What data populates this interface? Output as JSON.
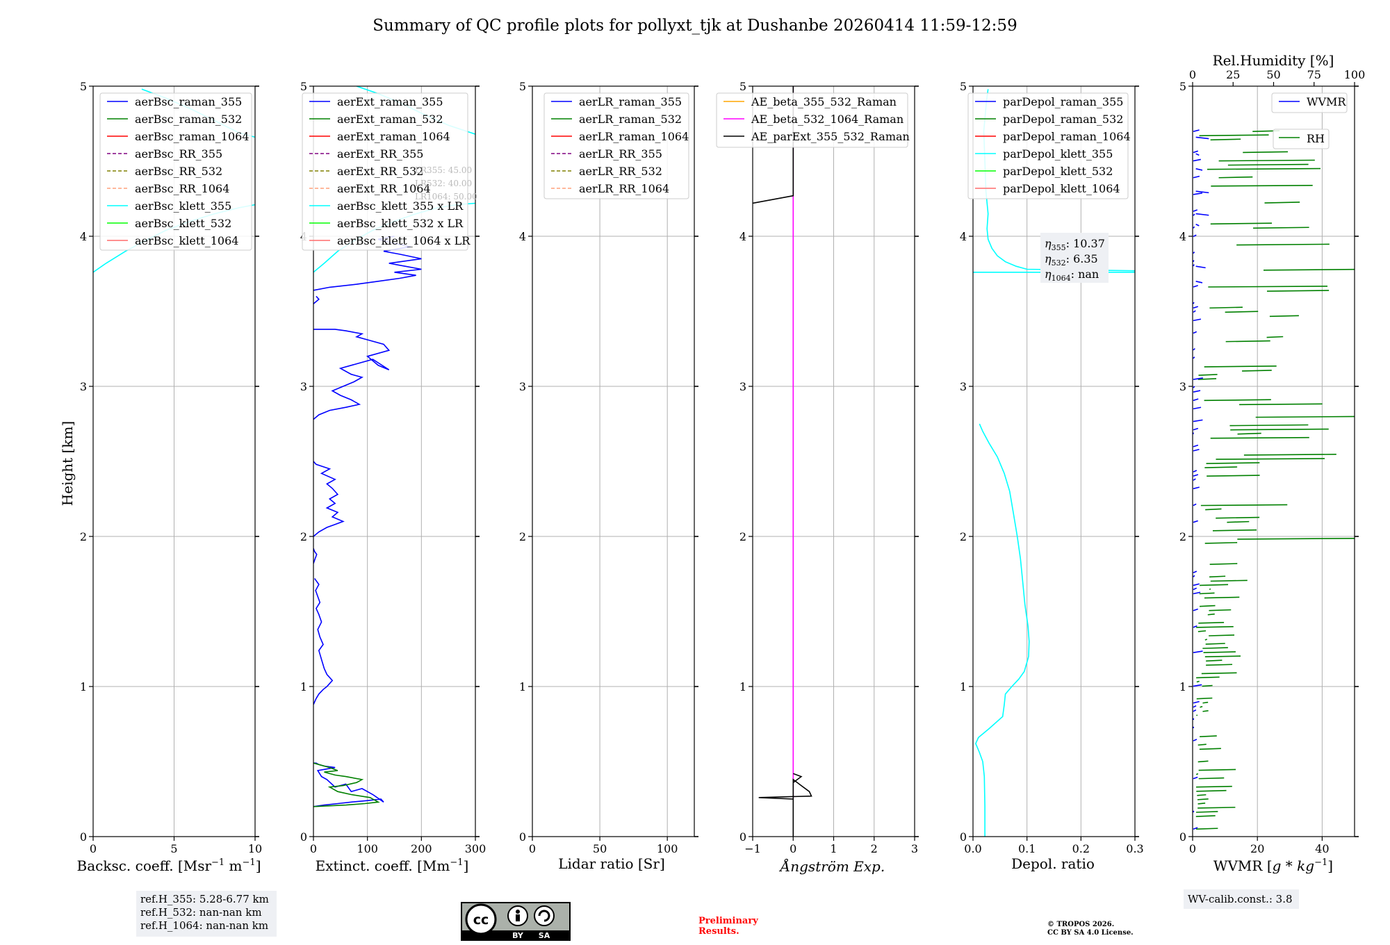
{
  "title": "Summary of QC profile plots for pollyxt_tjk at Dushanbe 20260414 11:59-12:59",
  "colors": {
    "blue": "#0000ff",
    "green": "#008000",
    "red": "#ff0000",
    "purple": "#800080",
    "olive": "#808000",
    "salmon": "#ffa07a",
    "cyan": "#00ffff",
    "lime": "#00ff00",
    "lightred": "#ff6b6b",
    "orange": "#ffa500",
    "magenta": "#ff00ff",
    "black": "#000000",
    "grid": "#b0b0b0",
    "box": "#eef0f4",
    "prelim": "#ff0000"
  },
  "chart_data": [
    {
      "type": "line",
      "id": "bsc",
      "xlabel": "Backsc. coeff. [Msr$^{-1}$ m$^{-1}$]",
      "xlabel_text": "Backsc. coeff. [Msr",
      "xlabel_sup1": "−1",
      "xlabel_mid": " m",
      "xlabel_sup2": "−1",
      "xlabel_end": "]",
      "ylabel": "Height [km]",
      "xlim": [
        0,
        10
      ],
      "ylim": [
        0,
        5
      ],
      "xticks": [
        0,
        5,
        10
      ],
      "xticklabels": [
        "0",
        "5",
        "10"
      ],
      "yticks": [
        0,
        1,
        2,
        3,
        4,
        5
      ],
      "yticklabels": [
        "0",
        "1",
        "2",
        "3",
        "4",
        "5"
      ],
      "legend": [
        {
          "label": "aerBsc_raman_355",
          "color": "blue",
          "dash": false
        },
        {
          "label": "aerBsc_raman_532",
          "color": "green",
          "dash": false
        },
        {
          "label": "aerBsc_raman_1064",
          "color": "red",
          "dash": false
        },
        {
          "label": "aerBsc_RR_355",
          "color": "purple",
          "dash": true
        },
        {
          "label": "aerBsc_RR_532",
          "color": "olive",
          "dash": true
        },
        {
          "label": "aerBsc_RR_1064",
          "color": "salmon",
          "dash": true
        },
        {
          "label": "aerBsc_klett_355",
          "color": "cyan",
          "dash": false
        },
        {
          "label": "aerBsc_klett_532",
          "color": "lime",
          "dash": false
        },
        {
          "label": "aerBsc_klett_1064",
          "color": "lightred",
          "dash": false
        }
      ],
      "series": [
        {
          "name": "aerBsc_klett_355",
          "color": "cyan",
          "x": [
            0,
            0.8,
            2.0,
            3.2,
            4.5,
            6.0,
            7.5,
            9.0,
            10.0
          ],
          "y": [
            3.76,
            3.82,
            3.9,
            3.97,
            4.04,
            4.1,
            4.15,
            4.19,
            4.21
          ]
        },
        {
          "name": "aerBsc_klett_355",
          "color": "cyan",
          "x": [
            3.0,
            4.5,
            6.0,
            7.5,
            9.0,
            10.0
          ],
          "y": [
            4.98,
            4.92,
            4.85,
            4.77,
            4.69,
            4.66
          ]
        }
      ],
      "annotation": {
        "lines": [
          "ref.H_355: 5.28-6.77 km",
          "ref.H_532: nan-nan km",
          "ref.H_1064: nan-nan km"
        ]
      }
    },
    {
      "type": "line",
      "id": "ext",
      "xlabel": "Extinct. coeff. [Mm$^{-1}$]",
      "xlabel_text": "Extinct. coeff. [Mm",
      "xlabel_sup1": "−1",
      "xlabel_end": "]",
      "xlim": [
        0,
        300
      ],
      "ylim": [
        0,
        5
      ],
      "xticks": [
        0,
        100,
        200,
        300
      ],
      "xticklabels": [
        "0",
        "100",
        "200",
        "300"
      ],
      "yticks": [
        0,
        1,
        2,
        3,
        4,
        5
      ],
      "yticklabels": [
        "0",
        "1",
        "2",
        "3",
        "4",
        "5"
      ],
      "legend": [
        {
          "label": "aerExt_raman_355",
          "color": "blue",
          "dash": false
        },
        {
          "label": "aerExt_raman_532",
          "color": "green",
          "dash": false
        },
        {
          "label": "aerExt_raman_1064",
          "color": "red",
          "dash": false
        },
        {
          "label": "aerExt_RR_355",
          "color": "purple",
          "dash": true
        },
        {
          "label": "aerExt_RR_532",
          "color": "olive",
          "dash": true
        },
        {
          "label": "aerExt_RR_1064",
          "color": "salmon",
          "dash": true
        },
        {
          "label": "aerBsc_klett_355 x LR",
          "color": "cyan",
          "dash": false
        },
        {
          "label": "aerBsc_klett_532 x LR",
          "color": "lime",
          "dash": false
        },
        {
          "label": "aerBsc_klett_1064 x LR",
          "color": "lightred",
          "dash": false
        }
      ],
      "lr_note": [
        "LR355: 45.00",
        "LR532: 40.00",
        "LR1064: 50.00"
      ],
      "series": [
        {
          "name": "aerExt_raman_355",
          "color": "blue",
          "x": [
            0,
            20,
            45,
            70,
            100,
            125,
            130,
            110,
            90,
            70,
            60,
            40,
            25,
            15,
            8,
            40,
            20,
            10,
            5,
            0
          ],
          "y": [
            0.2,
            0.21,
            0.22,
            0.23,
            0.24,
            0.25,
            0.23,
            0.28,
            0.32,
            0.3,
            0.35,
            0.33,
            0.38,
            0.4,
            0.44,
            0.46,
            0.47,
            0.48,
            0.49,
            0.49
          ]
        },
        {
          "name": "aerExt_raman_532",
          "color": "green",
          "x": [
            0,
            30,
            60,
            95,
            120,
            105,
            70,
            45,
            30,
            55,
            80,
            90,
            60,
            40,
            20,
            45,
            30,
            10,
            0
          ],
          "y": [
            0.2,
            0.205,
            0.21,
            0.22,
            0.23,
            0.26,
            0.28,
            0.3,
            0.33,
            0.34,
            0.36,
            0.38,
            0.4,
            0.41,
            0.43,
            0.44,
            0.46,
            0.48,
            0.49
          ]
        },
        {
          "name": "aerExt_raman_355",
          "color": "blue",
          "x": [
            0,
            5,
            10,
            18,
            25,
            30,
            35,
            25,
            20,
            15,
            10,
            18,
            12,
            8,
            15,
            10,
            5,
            12,
            8,
            4,
            10,
            6,
            2
          ],
          "y": [
            0.88,
            0.92,
            0.95,
            0.98,
            1.0,
            1.02,
            1.04,
            1.08,
            1.12,
            1.18,
            1.24,
            1.28,
            1.33,
            1.38,
            1.43,
            1.48,
            1.52,
            1.56,
            1.6,
            1.64,
            1.68,
            1.7,
            1.72
          ]
        },
        {
          "name": "aerExt_raman_355",
          "color": "blue",
          "x": [
            0,
            3,
            6,
            2,
            0
          ],
          "y": [
            1.82,
            1.85,
            1.88,
            1.9,
            1.92
          ]
        },
        {
          "name": "aerExt_raman_355",
          "color": "blue",
          "x": [
            0,
            10,
            25,
            40,
            55,
            35,
            45,
            25,
            40,
            30,
            45,
            35,
            25,
            40,
            15,
            30,
            5,
            0
          ],
          "y": [
            2.0,
            2.03,
            2.06,
            2.08,
            2.1,
            2.13,
            2.16,
            2.19,
            2.22,
            2.25,
            2.28,
            2.32,
            2.35,
            2.38,
            2.42,
            2.45,
            2.48,
            2.5
          ]
        },
        {
          "name": "aerExt_raman_355",
          "color": "blue",
          "x": [
            0,
            10,
            30,
            60,
            85,
            70,
            50,
            35,
            55,
            75,
            90,
            70,
            50,
            80,
            110,
            140,
            120,
            100,
            140,
            130,
            100,
            80,
            90,
            60,
            40,
            20,
            0
          ],
          "y": [
            2.78,
            2.81,
            2.84,
            2.86,
            2.88,
            2.91,
            2.94,
            2.97,
            3.0,
            3.03,
            3.06,
            3.08,
            3.12,
            3.15,
            3.18,
            3.11,
            3.14,
            3.2,
            3.24,
            3.28,
            3.31,
            3.33,
            3.35,
            3.37,
            3.38,
            3.38,
            3.38
          ]
        },
        {
          "name": "aerExt_raman_355",
          "color": "blue",
          "x": [
            0,
            10,
            5
          ],
          "y": [
            3.55,
            3.58,
            3.6
          ]
        },
        {
          "name": "aerExt_raman_355",
          "color": "blue",
          "x": [
            0,
            30,
            80,
            120,
            160,
            190,
            150,
            200,
            170,
            140,
            200,
            160,
            130,
            180,
            140,
            120,
            150
          ],
          "y": [
            3.64,
            3.66,
            3.68,
            3.7,
            3.72,
            3.74,
            3.76,
            3.78,
            3.8,
            3.82,
            3.85,
            3.88,
            3.9,
            3.93,
            3.96,
            3.98,
            4.0
          ]
        },
        {
          "name": "aerBsc_klett_355 x LR",
          "color": "cyan",
          "x": [
            0,
            20,
            45,
            75,
            110,
            150,
            190,
            230,
            265,
            300
          ],
          "y": [
            3.76,
            3.82,
            3.9,
            3.97,
            4.04,
            4.1,
            4.15,
            4.19,
            4.21,
            4.22
          ]
        },
        {
          "name": "aerBsc_klett_355 x LR",
          "color": "cyan",
          "x": [
            80,
            120,
            160,
            200,
            250,
            300
          ],
          "y": [
            5.0,
            4.95,
            4.89,
            4.82,
            4.74,
            4.68
          ]
        }
      ]
    },
    {
      "type": "line",
      "id": "lr",
      "xlabel": "Lidar ratio [Sr]",
      "xlim": [
        0,
        120
      ],
      "ylim": [
        0,
        5
      ],
      "xticks": [
        0,
        50,
        100
      ],
      "xticklabels": [
        "0",
        "50",
        "100"
      ],
      "yticks": [
        0,
        1,
        2,
        3,
        4,
        5
      ],
      "yticklabels": [
        "0",
        "1",
        "2",
        "3",
        "4",
        "5"
      ],
      "legend": [
        {
          "label": "aerLR_raman_355",
          "color": "blue",
          "dash": false
        },
        {
          "label": "aerLR_raman_532",
          "color": "green",
          "dash": false
        },
        {
          "label": "aerLR_raman_1064",
          "color": "red",
          "dash": false
        },
        {
          "label": "aerLR_RR_355",
          "color": "purple",
          "dash": true
        },
        {
          "label": "aerLR_RR_532",
          "color": "olive",
          "dash": true
        },
        {
          "label": "aerLR_RR_1064",
          "color": "salmon",
          "dash": true
        }
      ],
      "series": []
    },
    {
      "type": "line",
      "id": "ae",
      "xlabel": "Ångström Exp.",
      "xlim": [
        -1,
        3
      ],
      "ylim": [
        0,
        5
      ],
      "xticks": [
        -1,
        0,
        1,
        2,
        3
      ],
      "xticklabels": [
        "−1",
        "0",
        "1",
        "2",
        "3"
      ],
      "yticks": [
        0,
        1,
        2,
        3,
        4,
        5
      ],
      "yticklabels": [
        "0",
        "1",
        "2",
        "3",
        "4",
        "5"
      ],
      "legend": [
        {
          "label": "AE_beta_355_532_Raman",
          "color": "orange",
          "dash": false
        },
        {
          "label": "AE_beta_532_1064_Raman",
          "color": "magenta",
          "dash": false
        },
        {
          "label": "AE_parExt_355_532_Raman",
          "color": "black",
          "dash": false
        }
      ],
      "series": [
        {
          "name": "AE_beta_532_1064_Raman",
          "color": "magenta",
          "x": [
            0,
            0
          ],
          "y": [
            0.25,
            5.0
          ]
        },
        {
          "name": "AE_parExt_355_532_Raman",
          "color": "black",
          "x": [
            0,
            0,
            0.2,
            0.4,
            0.45,
            -0.85,
            0,
            0
          ],
          "y": [
            0.0,
            0.38,
            0.34,
            0.3,
            0.27,
            0.26,
            0.25,
            0.0
          ]
        },
        {
          "name": "AE_parExt_355_532_Raman",
          "color": "black",
          "x": [
            0,
            0.2,
            0
          ],
          "y": [
            0.36,
            0.4,
            0.42
          ]
        },
        {
          "name": "AE_parExt_355_532_Raman",
          "color": "black",
          "x": [
            -1,
            0,
            0,
            0
          ],
          "y": [
            4.22,
            4.27,
            4.29,
            5.0
          ]
        }
      ]
    },
    {
      "type": "line",
      "id": "depol",
      "xlabel": "Depol. ratio",
      "xlim": [
        0,
        0.3
      ],
      "ylim": [
        0,
        5
      ],
      "xticks": [
        0,
        0.1,
        0.2,
        0.3
      ],
      "xticklabels": [
        "0.0",
        "0.1",
        "0.2",
        "0.3"
      ],
      "yticks": [
        0,
        1,
        2,
        3,
        4,
        5
      ],
      "yticklabels": [
        "0",
        "1",
        "2",
        "3",
        "4",
        "5"
      ],
      "legend": [
        {
          "label": "parDepol_raman_355",
          "color": "blue",
          "dash": false
        },
        {
          "label": "parDepol_raman_532",
          "color": "green",
          "dash": false
        },
        {
          "label": "parDepol_raman_1064",
          "color": "red",
          "dash": false
        },
        {
          "label": "parDepol_klett_355",
          "color": "cyan",
          "dash": false
        },
        {
          "label": "parDepol_klett_532",
          "color": "lime",
          "dash": false
        },
        {
          "label": "parDepol_klett_1064",
          "color": "lightred",
          "dash": false
        }
      ],
      "eta": [
        {
          "sub": "355",
          "value": "10.37"
        },
        {
          "sub": "532",
          "value": "6.35"
        },
        {
          "sub": "1064",
          "value": "nan"
        }
      ],
      "series": [
        {
          "name": "parDepol_klett_355",
          "color": "cyan",
          "x": [
            0.022,
            0.022,
            0.021,
            0.018,
            0.012,
            0.005,
            0.01,
            0.03,
            0.055,
            0.058,
            0.06,
            0.072,
            0.085,
            0.095,
            0.103,
            0.104,
            0.102,
            0.096,
            0.092,
            0.088,
            0.082,
            0.075,
            0.068,
            0.058,
            0.045,
            0.03,
            0.018,
            0.012
          ],
          "y": [
            0.0,
            0.2,
            0.4,
            0.5,
            0.56,
            0.62,
            0.66,
            0.72,
            0.8,
            0.88,
            0.95,
            1.0,
            1.05,
            1.1,
            1.2,
            1.3,
            1.4,
            1.55,
            1.7,
            1.85,
            2.0,
            2.15,
            2.3,
            2.42,
            2.53,
            2.62,
            2.7,
            2.75
          ]
        },
        {
          "name": "parDepol_klett_355",
          "color": "cyan",
          "x": [
            0.3,
            0.1,
            0.08,
            0.06,
            0.045,
            0.035,
            0.028,
            0.026,
            0.028,
            0.024,
            0.022,
            0.02,
            0.025,
            0.028
          ],
          "y": [
            3.77,
            3.78,
            3.8,
            3.83,
            3.87,
            3.92,
            3.98,
            4.05,
            4.15,
            4.3,
            4.5,
            4.7,
            4.9,
            4.98
          ]
        },
        {
          "name": "parDepol_klett_355",
          "color": "cyan",
          "x": [
            0.0,
            0.3
          ],
          "y": [
            3.76,
            3.76
          ]
        }
      ]
    },
    {
      "type": "line",
      "id": "wv",
      "xlabel": "WVMR [$g*kg^{-1}$]",
      "xlabel_text": "WVMR [",
      "xlabel_ital": "g",
      "xlabel_mid": " * ",
      "xlabel_ital2": "kg",
      "xlabel_sup1": "−1",
      "xlabel_end": "]",
      "top_xlabel": "Rel.Humidity [%]",
      "xlim": [
        0,
        50
      ],
      "ylim": [
        0,
        5
      ],
      "top_xlim": [
        0,
        100
      ],
      "xticks": [
        0,
        20,
        40
      ],
      "xticklabels": [
        "0",
        "20",
        "40"
      ],
      "top_xticks": [
        0,
        25,
        50,
        75,
        100
      ],
      "top_xticklabels": [
        "0",
        "25",
        "50",
        "75",
        "100"
      ],
      "yticks": [
        0,
        1,
        2,
        3,
        4,
        5
      ],
      "yticklabels": [
        "0",
        "1",
        "2",
        "3",
        "4",
        "5"
      ],
      "legend": [
        {
          "label": "WVMR",
          "color": "blue",
          "dash": false
        }
      ],
      "legend2": [
        {
          "label": "RH",
          "color": "green",
          "dash": false
        }
      ],
      "calib": "WV-calib.const.: 3.8",
      "series": []
    }
  ],
  "footer": {
    "license_by": "BY",
    "license_sa": "SA",
    "prelim_line1": "Preliminary",
    "prelim_line2": "Results.",
    "copyright_line1": "© TROPOS 2026.",
    "copyright_line2": "CC BY SA 4.0 License."
  }
}
